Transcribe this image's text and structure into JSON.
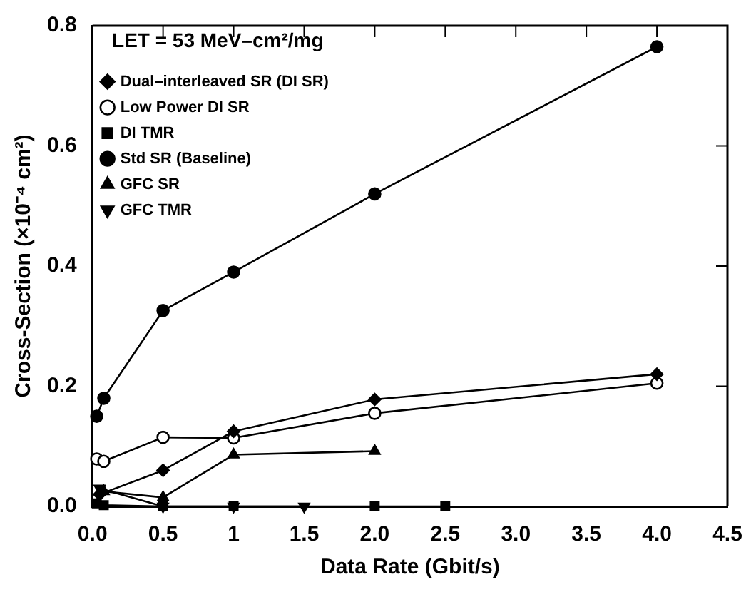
{
  "chart_data": {
    "type": "line",
    "xlabel": "Data Rate (Gbit/s)",
    "ylabel": "Cross-Section (×10⁻⁴ cm²)",
    "legend_title": "LET = 53 MeV–cm²/mg",
    "xlim": [
      0,
      4.5
    ],
    "xticks": [
      {
        "value": 0,
        "label": "0.0"
      },
      0.5,
      1,
      1.5,
      {
        "value": 2,
        "label": "2.0"
      },
      2.5,
      {
        "value": 3,
        "label": "3.0"
      },
      3.5,
      {
        "value": 4,
        "label": "4.0"
      },
      4.5
    ],
    "ylim": [
      0,
      0.8
    ],
    "yticks": [
      {
        "value": 0,
        "label": "0.0"
      },
      0.2,
      0.4,
      0.6,
      0.8
    ],
    "grid": false,
    "legend": "top left",
    "line_style": "solid",
    "series": [
      {
        "name": "Dual–interleaved SR (DI SR)",
        "color": "#000000",
        "marker": "diamond",
        "x": [
          0.05,
          0.5,
          1,
          2,
          4
        ],
        "values": [
          0.02,
          0.06,
          0.125,
          0.178,
          0.22
        ]
      },
      {
        "name": "Low Power DI SR",
        "color": "#000000",
        "marker": "circle-open",
        "x": [
          0.03,
          0.08,
          0.5,
          1,
          2,
          4
        ],
        "values": [
          0.079,
          0.075,
          0.115,
          0.114,
          0.155,
          0.205
        ]
      },
      {
        "name": "DI TMR",
        "color": "#000000",
        "marker": "square",
        "x": [
          0.03,
          0.08,
          0.5,
          1,
          2,
          2.5
        ],
        "values": [
          0.005,
          0.002,
          0,
          0,
          0,
          0
        ]
      },
      {
        "name": "Std SR (Baseline)",
        "color": "#000000",
        "marker": "circle",
        "x": [
          0.03,
          0.08,
          0.5,
          1,
          2,
          4
        ],
        "values": [
          0.15,
          0.18,
          0.326,
          0.39,
          0.52,
          0.765
        ]
      },
      {
        "name": "GFC SR",
        "color": "#000000",
        "marker": "triangle",
        "x": [
          0.08,
          0.5,
          1,
          2
        ],
        "values": [
          0.025,
          0.015,
          0.086,
          0.092
        ]
      },
      {
        "name": "GFC TMR",
        "color": "#000000",
        "marker": "triangle-down",
        "x": [
          0.05,
          0.5,
          1,
          1.5
        ],
        "values": [
          0.03,
          0,
          0,
          0
        ]
      }
    ]
  }
}
